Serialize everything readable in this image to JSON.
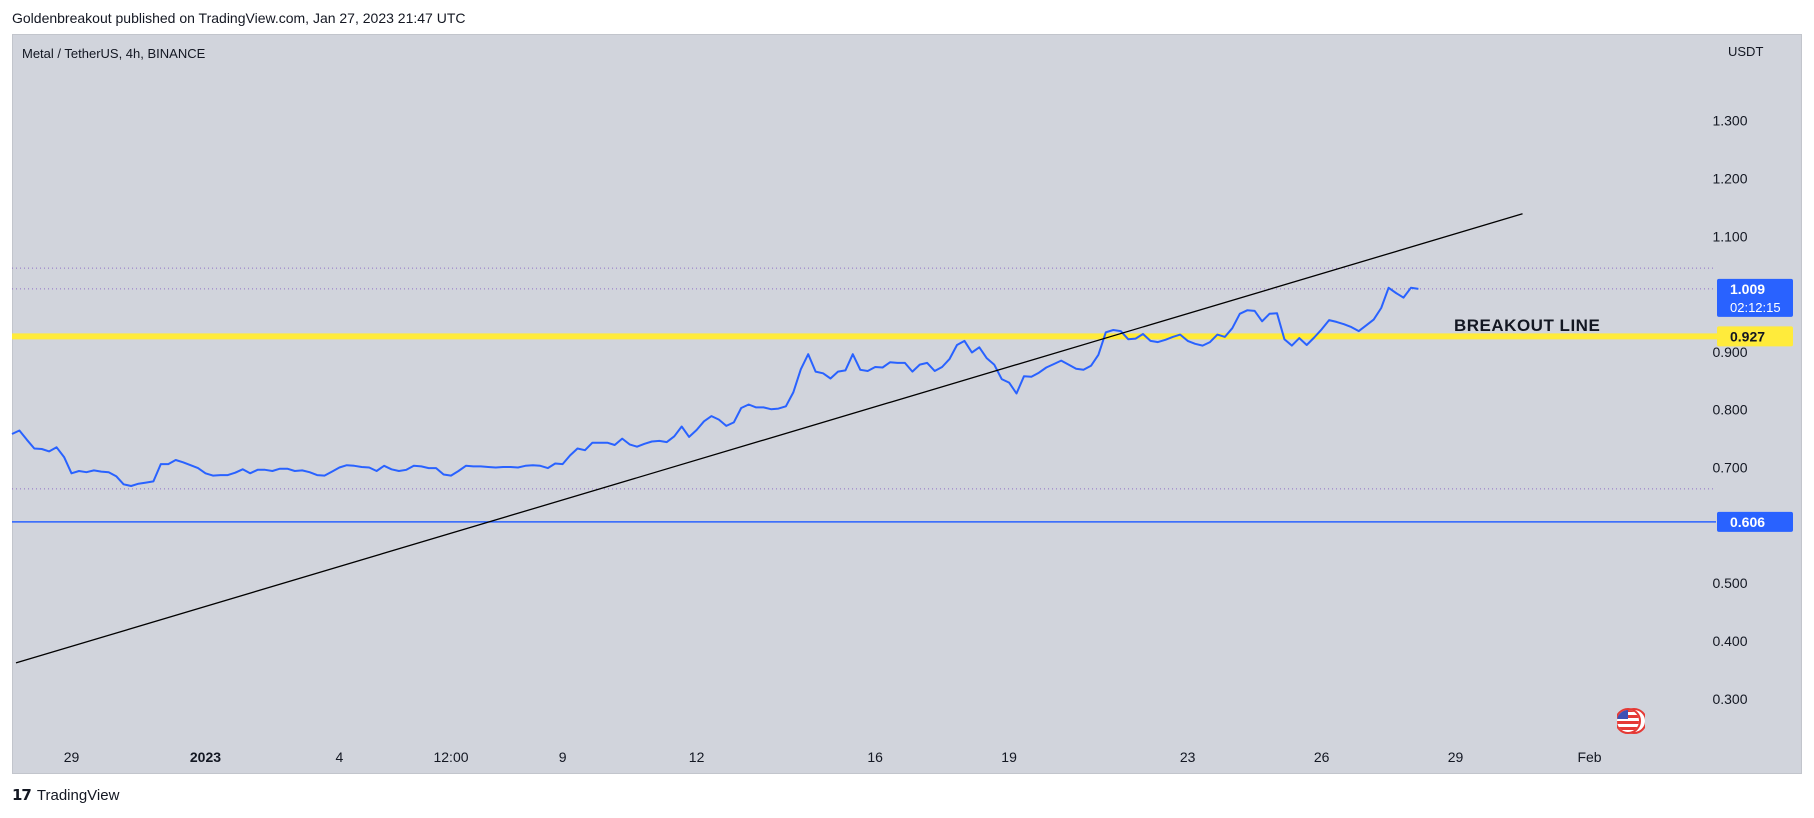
{
  "header": {
    "publisher_line": "Goldenbreakout published on TradingView.com, Jan 27, 2023 21:47 UTC"
  },
  "symbol": {
    "label": "Metal / TetherUS, 4h, BINANCE",
    "currency": "USDT"
  },
  "footer": {
    "logo_text": "TradingView",
    "logo_icon": "tradingview-logo-icon"
  },
  "icons": {
    "flag": "us-flag-icon"
  },
  "colors": {
    "background": "#d1d4dc",
    "price_line": "#2962ff",
    "breakout_zone": "#ffeb3b",
    "support_line": "#2962ff",
    "trend_line": "#000000"
  },
  "chart_data": {
    "type": "line",
    "title": "",
    "xlabel": "",
    "ylabel": "USDT",
    "ylim": [
      0.22,
      1.45
    ],
    "xlim": [
      "2022-12-27T16:00",
      "2023-02-03T20:00"
    ],
    "x_ticks": [
      {
        "x": "2022-12-29T00:00",
        "label": "29"
      },
      {
        "x": "2023-01-01T00:00",
        "label": "2023"
      },
      {
        "x": "2023-01-04T00:00",
        "label": "4"
      },
      {
        "x": "2023-01-06T12:00",
        "label": "12:00"
      },
      {
        "x": "2023-01-09T00:00",
        "label": "9"
      },
      {
        "x": "2023-01-12T00:00",
        "label": "12"
      },
      {
        "x": "2023-01-16T00:00",
        "label": "16"
      },
      {
        "x": "2023-01-19T00:00",
        "label": "19"
      },
      {
        "x": "2023-01-23T00:00",
        "label": "23"
      },
      {
        "x": "2023-01-26T00:00",
        "label": "26"
      },
      {
        "x": "2023-01-29T00:00",
        "label": "29"
      },
      {
        "x": "2023-02-01T00:00",
        "label": "Feb"
      }
    ],
    "y_ticks": [
      0.3,
      0.4,
      0.5,
      0.6,
      0.7,
      0.8,
      0.9,
      1.0,
      1.1,
      1.2,
      1.3
    ],
    "y_tick_labels": [
      "0.300",
      "0.400",
      "0.500",
      "",
      "0.700",
      "0.800",
      "0.900",
      "",
      "1.100",
      "1.200",
      "1.300"
    ],
    "series": [
      {
        "color": "#2962ff",
        "points": [
          [
            "2022-12-27T16:00",
            0.758
          ],
          [
            "2022-12-27T20:00",
            0.764
          ],
          [
            "2022-12-28T00:00",
            0.748
          ],
          [
            "2022-12-28T04:00",
            0.733
          ],
          [
            "2022-12-28T08:00",
            0.732
          ],
          [
            "2022-12-28T12:00",
            0.728
          ],
          [
            "2022-12-28T16:00",
            0.735
          ],
          [
            "2022-12-28T20:00",
            0.718
          ],
          [
            "2022-12-29T00:00",
            0.69
          ],
          [
            "2022-12-29T04:00",
            0.694
          ],
          [
            "2022-12-29T08:00",
            0.692
          ],
          [
            "2022-12-29T12:00",
            0.695
          ],
          [
            "2022-12-29T16:00",
            0.693
          ],
          [
            "2022-12-29T20:00",
            0.692
          ],
          [
            "2022-12-30T00:00",
            0.685
          ],
          [
            "2022-12-30T04:00",
            0.671
          ],
          [
            "2022-12-30T08:00",
            0.668
          ],
          [
            "2022-12-30T12:00",
            0.672
          ],
          [
            "2022-12-30T16:00",
            0.674
          ],
          [
            "2022-12-30T20:00",
            0.676
          ],
          [
            "2022-12-31T00:00",
            0.706
          ],
          [
            "2022-12-31T04:00",
            0.706
          ],
          [
            "2022-12-31T08:00",
            0.713
          ],
          [
            "2022-12-31T12:00",
            0.709
          ],
          [
            "2022-12-31T16:00",
            0.704
          ],
          [
            "2022-12-31T20:00",
            0.699
          ],
          [
            "2023-01-01T00:00",
            0.69
          ],
          [
            "2023-01-01T04:00",
            0.686
          ],
          [
            "2023-01-01T08:00",
            0.687
          ],
          [
            "2023-01-01T12:00",
            0.687
          ],
          [
            "2023-01-01T16:00",
            0.691
          ],
          [
            "2023-01-01T20:00",
            0.697
          ],
          [
            "2023-01-02T00:00",
            0.69
          ],
          [
            "2023-01-02T04:00",
            0.696
          ],
          [
            "2023-01-02T08:00",
            0.696
          ],
          [
            "2023-01-02T12:00",
            0.694
          ],
          [
            "2023-01-02T16:00",
            0.698
          ],
          [
            "2023-01-02T20:00",
            0.698
          ],
          [
            "2023-01-03T00:00",
            0.694
          ],
          [
            "2023-01-03T04:00",
            0.695
          ],
          [
            "2023-01-03T08:00",
            0.692
          ],
          [
            "2023-01-03T12:00",
            0.687
          ],
          [
            "2023-01-03T16:00",
            0.686
          ],
          [
            "2023-01-03T20:00",
            0.693
          ],
          [
            "2023-01-04T00:00",
            0.7
          ],
          [
            "2023-01-04T04:00",
            0.704
          ],
          [
            "2023-01-04T08:00",
            0.703
          ],
          [
            "2023-01-04T12:00",
            0.701
          ],
          [
            "2023-01-04T16:00",
            0.7
          ],
          [
            "2023-01-04T20:00",
            0.694
          ],
          [
            "2023-01-05T00:00",
            0.703
          ],
          [
            "2023-01-05T04:00",
            0.697
          ],
          [
            "2023-01-05T08:00",
            0.694
          ],
          [
            "2023-01-05T12:00",
            0.696
          ],
          [
            "2023-01-05T16:00",
            0.703
          ],
          [
            "2023-01-05T20:00",
            0.702
          ],
          [
            "2023-01-06T00:00",
            0.699
          ],
          [
            "2023-01-06T04:00",
            0.699
          ],
          [
            "2023-01-06T08:00",
            0.688
          ],
          [
            "2023-01-06T12:00",
            0.686
          ],
          [
            "2023-01-06T16:00",
            0.694
          ],
          [
            "2023-01-06T20:00",
            0.703
          ],
          [
            "2023-01-07T00:00",
            0.702
          ],
          [
            "2023-01-07T04:00",
            0.702
          ],
          [
            "2023-01-07T08:00",
            0.701
          ],
          [
            "2023-01-07T12:00",
            0.7
          ],
          [
            "2023-01-07T16:00",
            0.701
          ],
          [
            "2023-01-07T20:00",
            0.701
          ],
          [
            "2023-01-08T00:00",
            0.7
          ],
          [
            "2023-01-08T04:00",
            0.703
          ],
          [
            "2023-01-08T08:00",
            0.704
          ],
          [
            "2023-01-08T12:00",
            0.703
          ],
          [
            "2023-01-08T16:00",
            0.699
          ],
          [
            "2023-01-08T20:00",
            0.707
          ],
          [
            "2023-01-09T00:00",
            0.706
          ],
          [
            "2023-01-09T04:00",
            0.721
          ],
          [
            "2023-01-09T08:00",
            0.733
          ],
          [
            "2023-01-09T12:00",
            0.73
          ],
          [
            "2023-01-09T16:00",
            0.743
          ],
          [
            "2023-01-09T20:00",
            0.743
          ],
          [
            "2023-01-10T00:00",
            0.743
          ],
          [
            "2023-01-10T04:00",
            0.739
          ],
          [
            "2023-01-10T08:00",
            0.75
          ],
          [
            "2023-01-10T12:00",
            0.74
          ],
          [
            "2023-01-10T16:00",
            0.736
          ],
          [
            "2023-01-10T20:00",
            0.741
          ],
          [
            "2023-01-11T00:00",
            0.745
          ],
          [
            "2023-01-11T04:00",
            0.746
          ],
          [
            "2023-01-11T08:00",
            0.744
          ],
          [
            "2023-01-11T12:00",
            0.754
          ],
          [
            "2023-01-11T16:00",
            0.771
          ],
          [
            "2023-01-11T20:00",
            0.753
          ],
          [
            "2023-01-12T00:00",
            0.765
          ],
          [
            "2023-01-12T04:00",
            0.78
          ],
          [
            "2023-01-12T08:00",
            0.789
          ],
          [
            "2023-01-12T12:00",
            0.783
          ],
          [
            "2023-01-12T16:00",
            0.772
          ],
          [
            "2023-01-12T20:00",
            0.778
          ],
          [
            "2023-01-13T00:00",
            0.803
          ],
          [
            "2023-01-13T04:00",
            0.809
          ],
          [
            "2023-01-13T08:00",
            0.804
          ],
          [
            "2023-01-13T12:00",
            0.804
          ],
          [
            "2023-01-13T16:00",
            0.801
          ],
          [
            "2023-01-13T20:00",
            0.802
          ],
          [
            "2023-01-14T00:00",
            0.806
          ],
          [
            "2023-01-14T04:00",
            0.83
          ],
          [
            "2023-01-14T08:00",
            0.87
          ],
          [
            "2023-01-14T12:00",
            0.896
          ],
          [
            "2023-01-14T16:00",
            0.866
          ],
          [
            "2023-01-14T20:00",
            0.863
          ],
          [
            "2023-01-15T00:00",
            0.854
          ],
          [
            "2023-01-15T04:00",
            0.866
          ],
          [
            "2023-01-15T08:00",
            0.868
          ],
          [
            "2023-01-15T12:00",
            0.896
          ],
          [
            "2023-01-15T16:00",
            0.869
          ],
          [
            "2023-01-15T20:00",
            0.867
          ],
          [
            "2023-01-16T00:00",
            0.874
          ],
          [
            "2023-01-16T04:00",
            0.873
          ],
          [
            "2023-01-16T08:00",
            0.882
          ],
          [
            "2023-01-16T12:00",
            0.881
          ],
          [
            "2023-01-16T16:00",
            0.881
          ],
          [
            "2023-01-16T20:00",
            0.866
          ],
          [
            "2023-01-17T00:00",
            0.878
          ],
          [
            "2023-01-17T04:00",
            0.881
          ],
          [
            "2023-01-17T08:00",
            0.867
          ],
          [
            "2023-01-17T12:00",
            0.874
          ],
          [
            "2023-01-17T16:00",
            0.888
          ],
          [
            "2023-01-17T20:00",
            0.912
          ],
          [
            "2023-01-18T00:00",
            0.919
          ],
          [
            "2023-01-18T04:00",
            0.899
          ],
          [
            "2023-01-18T08:00",
            0.908
          ],
          [
            "2023-01-18T12:00",
            0.889
          ],
          [
            "2023-01-18T16:00",
            0.878
          ],
          [
            "2023-01-18T20:00",
            0.853
          ],
          [
            "2023-01-19T00:00",
            0.847
          ],
          [
            "2023-01-19T04:00",
            0.828
          ],
          [
            "2023-01-19T08:00",
            0.858
          ],
          [
            "2023-01-19T12:00",
            0.857
          ],
          [
            "2023-01-19T16:00",
            0.864
          ],
          [
            "2023-01-19T20:00",
            0.873
          ],
          [
            "2023-01-20T00:00",
            0.879
          ],
          [
            "2023-01-20T04:00",
            0.885
          ],
          [
            "2023-01-20T08:00",
            0.878
          ],
          [
            "2023-01-20T12:00",
            0.871
          ],
          [
            "2023-01-20T16:00",
            0.869
          ],
          [
            "2023-01-20T20:00",
            0.876
          ],
          [
            "2023-01-21T00:00",
            0.895
          ],
          [
            "2023-01-21T04:00",
            0.934
          ],
          [
            "2023-01-21T08:00",
            0.938
          ],
          [
            "2023-01-21T12:00",
            0.936
          ],
          [
            "2023-01-21T16:00",
            0.922
          ],
          [
            "2023-01-21T20:00",
            0.923
          ],
          [
            "2023-01-22T00:00",
            0.931
          ],
          [
            "2023-01-22T04:00",
            0.919
          ],
          [
            "2023-01-22T08:00",
            0.917
          ],
          [
            "2023-01-22T12:00",
            0.921
          ],
          [
            "2023-01-22T16:00",
            0.926
          ],
          [
            "2023-01-22T20:00",
            0.93
          ],
          [
            "2023-01-23T00:00",
            0.919
          ],
          [
            "2023-01-23T04:00",
            0.914
          ],
          [
            "2023-01-23T08:00",
            0.911
          ],
          [
            "2023-01-23T12:00",
            0.917
          ],
          [
            "2023-01-23T16:00",
            0.93
          ],
          [
            "2023-01-23T20:00",
            0.926
          ],
          [
            "2023-01-24T00:00",
            0.941
          ],
          [
            "2023-01-24T04:00",
            0.966
          ],
          [
            "2023-01-24T08:00",
            0.972
          ],
          [
            "2023-01-24T12:00",
            0.971
          ],
          [
            "2023-01-24T16:00",
            0.953
          ],
          [
            "2023-01-24T20:00",
            0.966
          ],
          [
            "2023-01-25T00:00",
            0.967
          ],
          [
            "2023-01-25T04:00",
            0.922
          ],
          [
            "2023-01-25T08:00",
            0.911
          ],
          [
            "2023-01-25T12:00",
            0.924
          ],
          [
            "2023-01-25T16:00",
            0.912
          ],
          [
            "2023-01-25T20:00",
            0.925
          ],
          [
            "2023-01-26T00:00",
            0.939
          ],
          [
            "2023-01-26T04:00",
            0.955
          ],
          [
            "2023-01-26T08:00",
            0.952
          ],
          [
            "2023-01-26T12:00",
            0.948
          ],
          [
            "2023-01-26T16:00",
            0.943
          ],
          [
            "2023-01-26T20:00",
            0.936
          ],
          [
            "2023-01-27T00:00",
            0.946
          ],
          [
            "2023-01-27T04:00",
            0.956
          ],
          [
            "2023-01-27T08:00",
            0.976
          ],
          [
            "2023-01-27T12:00",
            1.011
          ],
          [
            "2023-01-27T16:00",
            1.002
          ],
          [
            "2023-01-27T20:00",
            0.994
          ],
          [
            "2023-01-28T00:00",
            1.011
          ],
          [
            "2023-01-28T04:00",
            1.009
          ]
        ]
      }
    ],
    "drawings": {
      "trend_line": {
        "color": "#000000",
        "from": [
          "2022-12-27T16:00",
          0.362
        ],
        "to": [
          "2023-01-30T12:00",
          1.139
        ]
      },
      "breakout_zone": {
        "value": 0.927,
        "color": "#ffeb3b",
        "label": "BREAKOUT LINE"
      },
      "support_line": {
        "value": 0.606,
        "color": "#2962ff"
      },
      "dotted_levels": [
        1.045,
        1.009,
        0.663
      ]
    },
    "price_tags": [
      {
        "value": 1.009,
        "label": "1.009",
        "sublabel": "02:12:15",
        "bg": "#2962ff",
        "fg": "#ffffff"
      },
      {
        "value": 0.927,
        "label": "0.927",
        "bg": "#ffeb3b",
        "fg": "#131722"
      },
      {
        "value": 0.606,
        "label": "0.606",
        "bg": "#2962ff",
        "fg": "#ffffff"
      }
    ],
    "grid": false
  }
}
